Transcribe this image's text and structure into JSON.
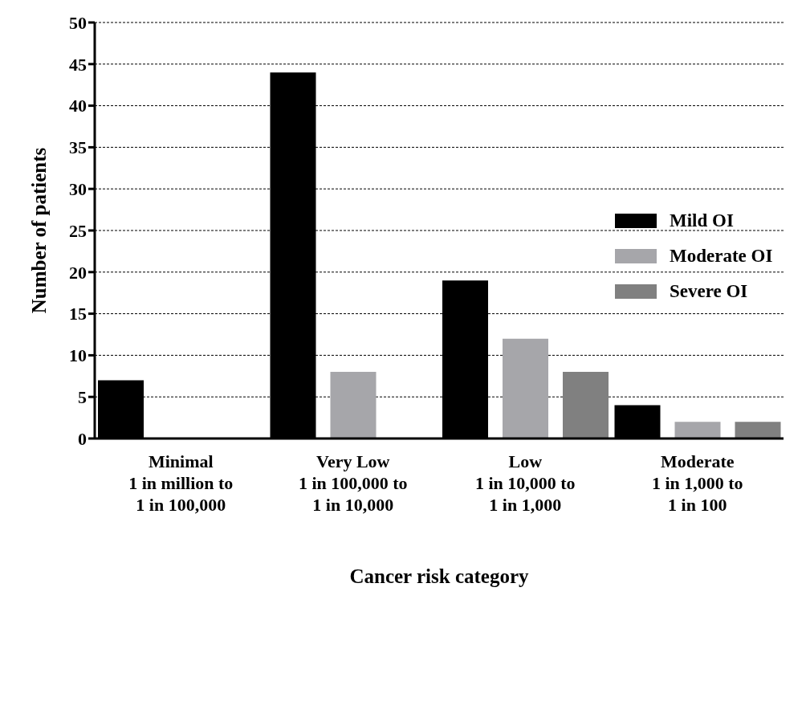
{
  "chart_data": {
    "type": "bar",
    "xlabel": "Cancer risk category",
    "ylabel": "Number of patients",
    "categories": [
      "Minimal\n1 in million to\n1 in 100,000",
      "Very Low\n1 in 100,000 to\n1 in 10,000",
      "Low\n1 in 10,000 to\n1 in 1,000",
      "Moderate\n1 in 1,000 to\n1 in 100"
    ],
    "series": [
      {
        "name": "Mild OI",
        "color": "#000000",
        "values": [
          7,
          44,
          19,
          4
        ]
      },
      {
        "name": "Moderate OI",
        "color": "#a6a6aa",
        "values": [
          0,
          8,
          12,
          2
        ]
      },
      {
        "name": "Severe OI",
        "color": "#808080",
        "values": [
          0,
          0,
          8,
          2
        ]
      }
    ],
    "ylim": [
      0,
      50
    ],
    "yticks": [
      0,
      5,
      10,
      15,
      20,
      25,
      30,
      35,
      40,
      45,
      50
    ],
    "grid": "y",
    "legend": "right"
  }
}
